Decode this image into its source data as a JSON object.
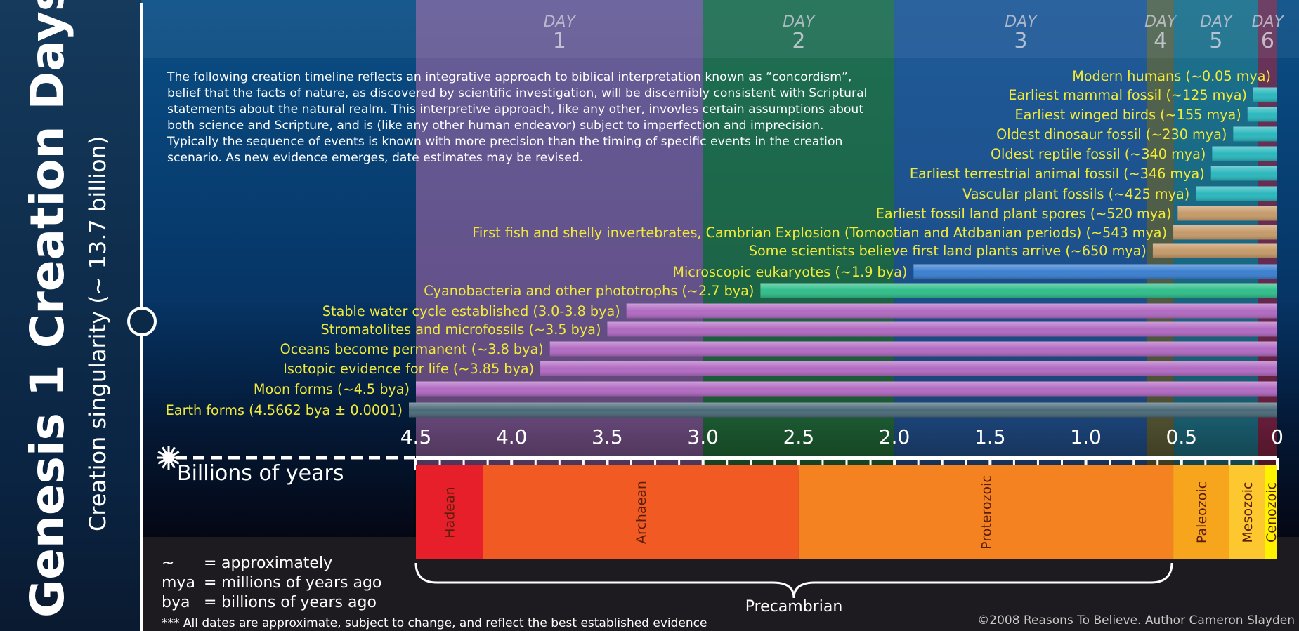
{
  "header": {
    "title": "Genesis 1 Creation Days",
    "subtitle": "Creation singularity  (~ 13.7 billion)"
  },
  "days": [
    {
      "word": "DAY",
      "num": "1",
      "from": 4.5,
      "to": 3.0,
      "color": "#b06aa8"
    },
    {
      "word": "DAY",
      "num": "2",
      "from": 3.0,
      "to": 2.0,
      "color": "#2f8a2c"
    },
    {
      "word": "DAY",
      "num": "3",
      "from": 2.0,
      "to": 0.68,
      "color": "#2f64a8"
    },
    {
      "word": "DAY",
      "num": "4",
      "from": 0.68,
      "to": 0.54,
      "color": "#8a7a2a"
    },
    {
      "word": "DAY",
      "num": "5",
      "from": 0.54,
      "to": 0.1,
      "color": "#2a8e96"
    },
    {
      "word": "DAY",
      "num": "6",
      "from": 0.1,
      "to": 0.0,
      "color": "#b5203a"
    }
  ],
  "intro_lines": [
    "The following creation timeline reflects an integrative approach to biblical interpretation known as “concordism”,",
    "belief that the facts of nature, as discovered by scientific investigation, will be discernibly consistent with Scriptural",
    "statements about the natural realm. This interpretive approach, like any other, invovles certain assumptions about",
    "both science and Scripture, and is (like any other human endeavor) subject to imperfection and imprecision.",
    "Typically the sequence of events is known with more precision than the timing of specific events in the creation",
    "scenario. As new evidence emerges, date estimates may be revised."
  ],
  "chart_data": {
    "type": "bar",
    "orientation": "horizontal",
    "xlabel": "Billions of years",
    "x_reversed": true,
    "xlim": [
      4.5,
      0
    ],
    "xticks": [
      "4.5",
      "4.0",
      "3.5",
      "3.0",
      "2.5",
      "2.0",
      "1.5",
      "1.0",
      "0.5",
      "0"
    ],
    "events": [
      {
        "label": "Modern humans (~0.05 mya)",
        "start": 5e-05,
        "color": "#e8232b"
      },
      {
        "label": "Earliest mammal fossil (~125 mya)",
        "start": 0.125,
        "color": "#2ab7bd"
      },
      {
        "label": "Earliest winged birds (~155 mya)",
        "start": 0.155,
        "color": "#2ab7bd"
      },
      {
        "label": "Oldest dinosaur fossil (~230 mya)",
        "start": 0.23,
        "color": "#2ab7bd"
      },
      {
        "label": "Oldest reptile fossil (~340 mya)",
        "start": 0.34,
        "color": "#2ab7bd"
      },
      {
        "label": "Earliest terrestrial animal fossil (~346 mya)",
        "start": 0.346,
        "color": "#2ab7bd"
      },
      {
        "label": "Vascular plant fossils (~425 mya)",
        "start": 0.425,
        "color": "#2ab7bd"
      },
      {
        "label": "Earliest fossil land plant spores (~520 mya)",
        "start": 0.52,
        "color": "#c59a6a"
      },
      {
        "label": "First fish and shelly invertebrates, Cambrian Explosion (Tomootian and Atdbanian periods) (~543 mya)",
        "start": 0.543,
        "color": "#c59a6a"
      },
      {
        "label": "Some scientists believe first land plants arrive (~650 mya)",
        "start": 0.65,
        "color": "#c59a6a"
      },
      {
        "label": "Microscopic eukaryotes (~1.9 bya)",
        "start": 1.9,
        "color": "#3a7fd0"
      },
      {
        "label": "Cyanobacteria and other phototrophs (~2.7 bya)",
        "start": 2.7,
        "color": "#2fbe8a"
      },
      {
        "label": "Stable water cycle established (3.0-3.8 bya)",
        "start": 3.4,
        "color": "#b16ac2"
      },
      {
        "label": "Stromatolites and microfossils (~3.5 bya)",
        "start": 3.5,
        "color": "#b16ac2"
      },
      {
        "label": "Oceans become permanent (~3.8 bya)",
        "start": 3.8,
        "color": "#b16ac2"
      },
      {
        "label": "Isotopic evidence for life (~3.85 bya)",
        "start": 3.85,
        "color": "#b16ac2"
      },
      {
        "label": "Moon forms (~4.5 bya)",
        "start": 4.5,
        "color": "#b16ac2"
      },
      {
        "label": "Earth forms (4.5662 bya ± 0.0001)",
        "start": 4.5662,
        "color": "#4a6a78"
      }
    ]
  },
  "eras": [
    {
      "name": "Hadean",
      "from": 4.5,
      "to": 4.15,
      "color": "#e61f2a"
    },
    {
      "name": "Archaean",
      "from": 4.15,
      "to": 2.5,
      "color": "#f15a22"
    },
    {
      "name": "Proterozoic",
      "from": 2.5,
      "to": 0.543,
      "color": "#f58220"
    },
    {
      "name": "Paleozoic",
      "from": 0.543,
      "to": 0.25,
      "color": "#f7a51c"
    },
    {
      "name": "Mesozoic",
      "from": 0.25,
      "to": 0.065,
      "color": "#fdc82f"
    },
    {
      "name": "Cenozoic",
      "from": 0.065,
      "to": 0.0,
      "color": "#fff200"
    }
  ],
  "precambrian_label": "Precambrian",
  "legend": [
    {
      "sym": "~",
      "eq": "=",
      "def": "approximately"
    },
    {
      "sym": "mya",
      "eq": "=",
      "def": "millions of years ago"
    },
    {
      "sym": "bya",
      "eq": "=",
      "def": "billions of years ago"
    }
  ],
  "footnote": "*** All dates are approximate, subject to change, and reflect the best established evidence",
  "copyright": "©2008 Reasons To Believe.  Author Cameron Slayden",
  "colors": {
    "label_yellow": "#f2ea3a",
    "axis_white": "#ffffff",
    "left_panel": "#0b2a48"
  }
}
